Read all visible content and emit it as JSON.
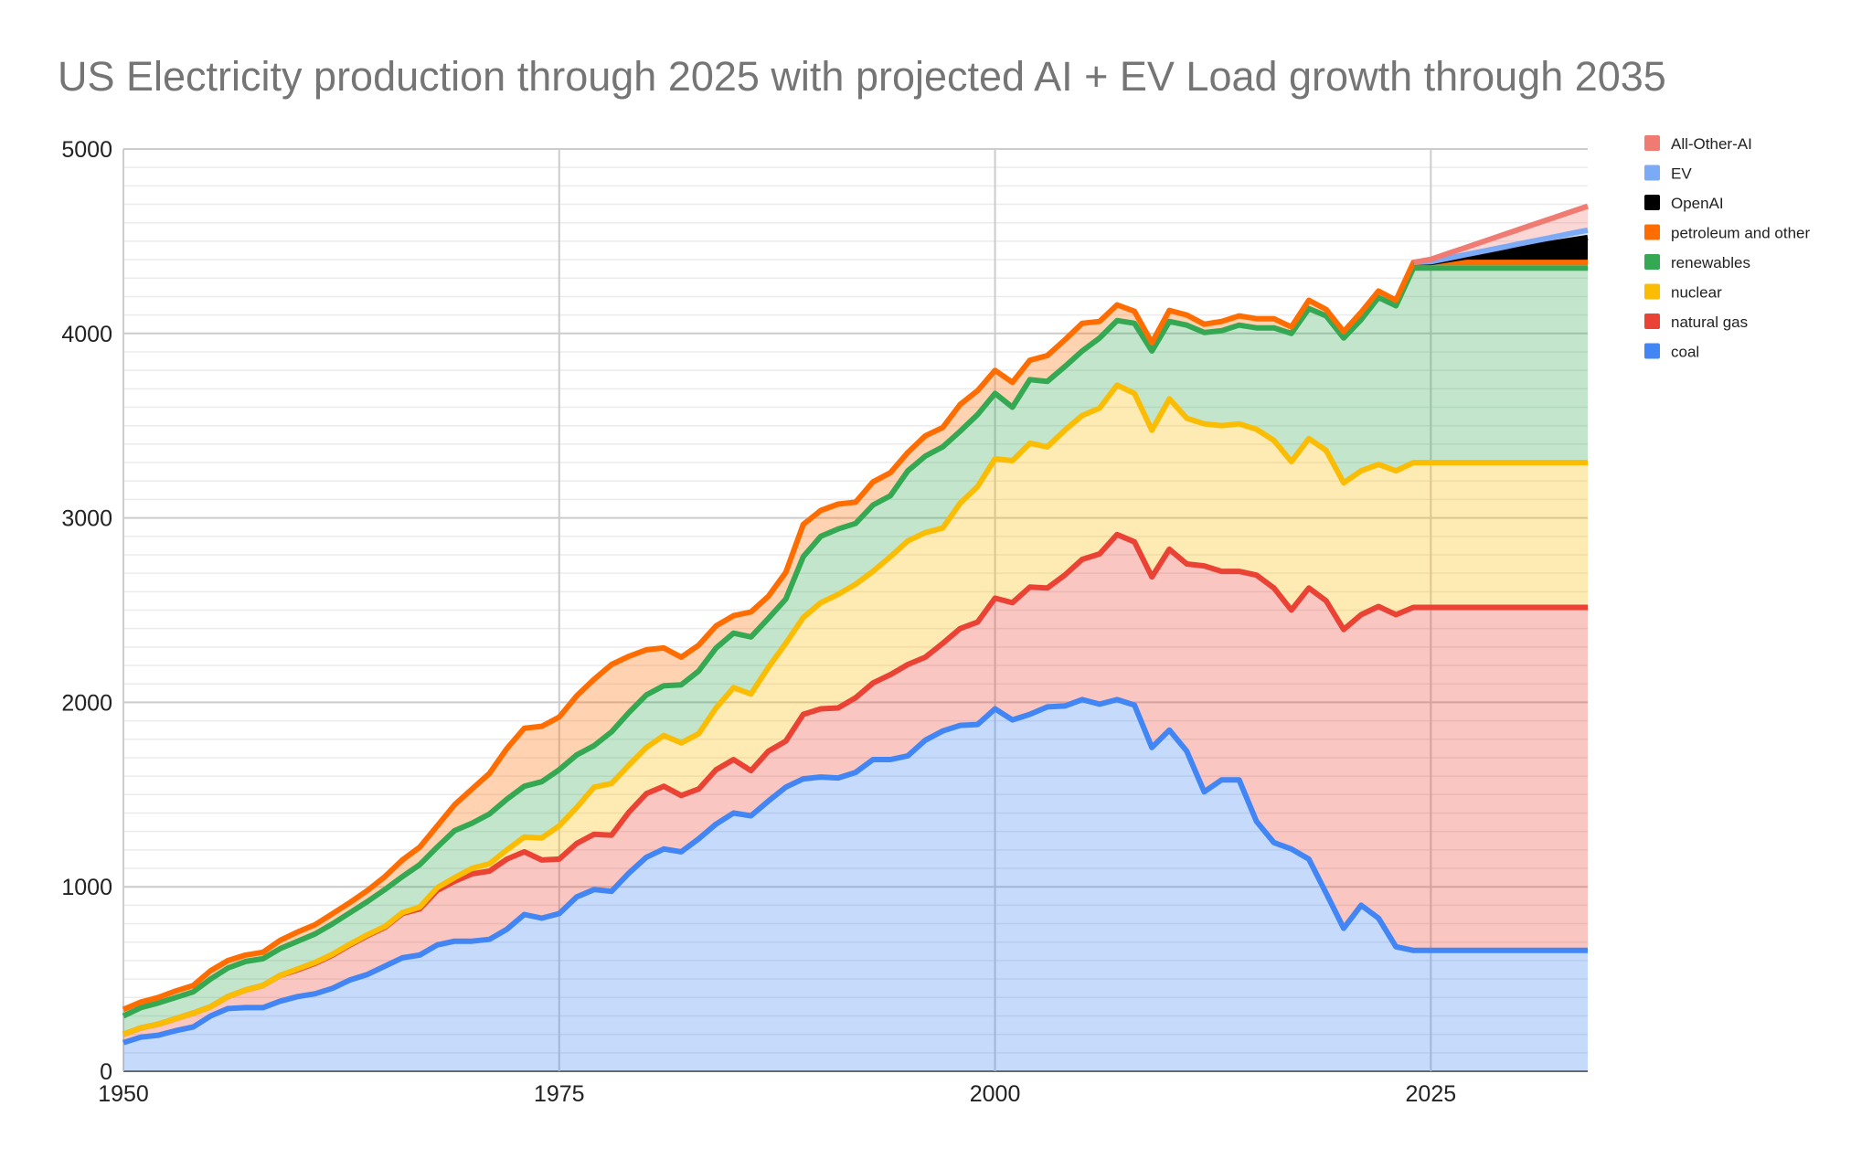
{
  "chart_data": {
    "type": "area",
    "stacked": true,
    "title": "US Electricity production through 2025 with projected AI + EV Load growth through 2035",
    "xlabel": "",
    "ylabel": "",
    "xlim": [
      1950,
      2034
    ],
    "ylim": [
      0,
      5000
    ],
    "x_ticks": [
      "1950",
      "1975",
      "2000",
      "2025"
    ],
    "y_ticks": [
      "0",
      "1000",
      "2000",
      "3000",
      "4000",
      "5000"
    ],
    "grid": true,
    "legend_position": "right",
    "x_start": 1950,
    "series": [
      {
        "name": "coal",
        "color": "#4285F4",
        "values": [
          155,
          185,
          195,
          220,
          240,
          300,
          340,
          345,
          345,
          380,
          405,
          420,
          450,
          495,
          525,
          570,
          615,
          630,
          685,
          705,
          705,
          715,
          770,
          850,
          830,
          855,
          945,
          985,
          975,
          1075,
          1160,
          1205,
          1190,
          1260,
          1340,
          1400,
          1385,
          1465,
          1540,
          1585,
          1595,
          1590,
          1620,
          1690,
          1690,
          1710,
          1795,
          1845,
          1875,
          1880,
          1965,
          1905,
          1935,
          1975,
          1980,
          2015,
          1990,
          2015,
          1985,
          1755,
          1850,
          1735,
          1515,
          1580,
          1580,
          1355,
          1240,
          1205,
          1150,
          965,
          775,
          900,
          830,
          675,
          655,
          655,
          655,
          655,
          655,
          655,
          655,
          655,
          655,
          655,
          655
        ]
      },
      {
        "name": "natural gas",
        "color": "#EA4335",
        "values": [
          45,
          50,
          60,
          65,
          75,
          50,
          65,
          95,
          120,
          140,
          145,
          165,
          180,
          190,
          210,
          210,
          240,
          250,
          295,
          325,
          365,
          370,
          380,
          340,
          315,
          295,
          290,
          300,
          305,
          330,
          345,
          340,
          305,
          270,
          295,
          290,
          245,
          270,
          250,
          350,
          370,
          380,
          405,
          415,
          460,
          495,
          450,
          475,
          525,
          555,
          600,
          635,
          690,
          645,
          710,
          760,
          815,
          895,
          885,
          925,
          980,
          1015,
          1225,
          1130,
          1130,
          1335,
          1380,
          1295,
          1470,
          1585,
          1620,
          1575,
          1690,
          1800,
          1860,
          1860,
          1860,
          1860,
          1860,
          1860,
          1860,
          1860,
          1860,
          1860,
          1860
        ]
      },
      {
        "name": "nuclear",
        "color": "#FBBC04",
        "values": [
          0,
          0,
          0,
          0,
          0,
          0,
          0,
          0,
          0,
          0,
          5,
          5,
          5,
          5,
          5,
          5,
          5,
          10,
          15,
          20,
          30,
          40,
          50,
          80,
          120,
          180,
          195,
          255,
          280,
          255,
          250,
          275,
          285,
          300,
          335,
          390,
          415,
          455,
          530,
          525,
          575,
          615,
          615,
          605,
          640,
          670,
          675,
          625,
          680,
          735,
          755,
          770,
          780,
          765,
          785,
          780,
          790,
          810,
          805,
          795,
          815,
          790,
          770,
          790,
          800,
          790,
          800,
          805,
          810,
          815,
          795,
          780,
          770,
          780,
          785,
          785,
          785,
          785,
          785,
          785,
          785,
          785,
          785,
          785,
          785
        ]
      },
      {
        "name": "renewables",
        "color": "#34A853",
        "values": [
          100,
          110,
          115,
          115,
          115,
          150,
          155,
          155,
          145,
          145,
          150,
          155,
          165,
          170,
          180,
          200,
          195,
          230,
          220,
          255,
          245,
          270,
          275,
          275,
          305,
          305,
          285,
          225,
          280,
          285,
          285,
          270,
          315,
          340,
          325,
          295,
          310,
          265,
          240,
          330,
          360,
          355,
          330,
          360,
          330,
          380,
          415,
          440,
          390,
          390,
          355,
          290,
          345,
          355,
          345,
          350,
          380,
          350,
          380,
          430,
          420,
          505,
          495,
          515,
          535,
          550,
          610,
          695,
          705,
          730,
          785,
          820,
          905,
          895,
          1055,
          1055,
          1055,
          1055,
          1055,
          1055,
          1055,
          1055,
          1055,
          1055,
          1055
        ]
      },
      {
        "name": "petroleum and other",
        "color": "#FF6D01",
        "values": [
          35,
          30,
          30,
          35,
          35,
          45,
          40,
          35,
          35,
          45,
          50,
          50,
          55,
          55,
          60,
          70,
          90,
          95,
          115,
          140,
          185,
          220,
          275,
          315,
          300,
          285,
          320,
          360,
          365,
          305,
          245,
          205,
          150,
          140,
          120,
          95,
          135,
          120,
          145,
          175,
          140,
          135,
          115,
          125,
          125,
          100,
          110,
          105,
          145,
          130,
          125,
          135,
          105,
          140,
          145,
          150,
          90,
          85,
          65,
          45,
          60,
          55,
          45,
          50,
          50,
          50,
          50,
          35,
          45,
          35,
          35,
          40,
          35,
          30,
          30,
          30,
          30,
          30,
          30,
          30,
          30,
          30,
          30,
          30,
          30
        ]
      },
      {
        "name": "OpenAI",
        "color": "#000000",
        "values": [
          0,
          0,
          0,
          0,
          0,
          0,
          0,
          0,
          0,
          0,
          0,
          0,
          0,
          0,
          0,
          0,
          0,
          0,
          0,
          0,
          0,
          0,
          0,
          0,
          0,
          0,
          0,
          0,
          0,
          0,
          0,
          0,
          0,
          0,
          0,
          0,
          0,
          0,
          0,
          0,
          0,
          0,
          0,
          0,
          0,
          0,
          0,
          0,
          0,
          0,
          0,
          0,
          0,
          0,
          0,
          0,
          0,
          0,
          0,
          0,
          0,
          0,
          0,
          0,
          0,
          0,
          0,
          0,
          0,
          0,
          0,
          0,
          0,
          0,
          0,
          0,
          15,
          30,
          45,
          60,
          75,
          90,
          105,
          120,
          135
        ]
      },
      {
        "name": "EV",
        "color": "#7BAAF7",
        "values": [
          0,
          0,
          0,
          0,
          0,
          0,
          0,
          0,
          0,
          0,
          0,
          0,
          0,
          0,
          0,
          0,
          0,
          0,
          0,
          0,
          0,
          0,
          0,
          0,
          0,
          0,
          0,
          0,
          0,
          0,
          0,
          0,
          0,
          0,
          0,
          0,
          0,
          0,
          0,
          0,
          0,
          0,
          0,
          0,
          0,
          0,
          0,
          0,
          0,
          0,
          0,
          0,
          0,
          0,
          0,
          0,
          0,
          0,
          0,
          0,
          0,
          0,
          0,
          0,
          0,
          0,
          0,
          0,
          0,
          0,
          0,
          0,
          0,
          0,
          0,
          4,
          8,
          12,
          16,
          20,
          24,
          28,
          32,
          36,
          40
        ]
      },
      {
        "name": "All-Other-AI",
        "color": "#F07B72",
        "values": [
          0,
          0,
          0,
          0,
          0,
          0,
          0,
          0,
          0,
          0,
          0,
          0,
          0,
          0,
          0,
          0,
          0,
          0,
          0,
          0,
          0,
          0,
          0,
          0,
          0,
          0,
          0,
          0,
          0,
          0,
          0,
          0,
          0,
          0,
          0,
          0,
          0,
          0,
          0,
          0,
          0,
          0,
          0,
          0,
          0,
          0,
          0,
          0,
          0,
          0,
          0,
          0,
          0,
          0,
          0,
          0,
          0,
          0,
          0,
          0,
          0,
          0,
          0,
          0,
          0,
          0,
          0,
          0,
          0,
          0,
          0,
          0,
          0,
          0,
          0,
          13,
          26,
          39,
          52,
          65,
          78,
          91,
          104,
          117,
          130
        ]
      }
    ],
    "legend": [
      "All-Other-AI",
      "EV",
      "OpenAI",
      "petroleum and other",
      "renewables",
      "nuclear",
      "natural gas",
      "coal"
    ]
  }
}
